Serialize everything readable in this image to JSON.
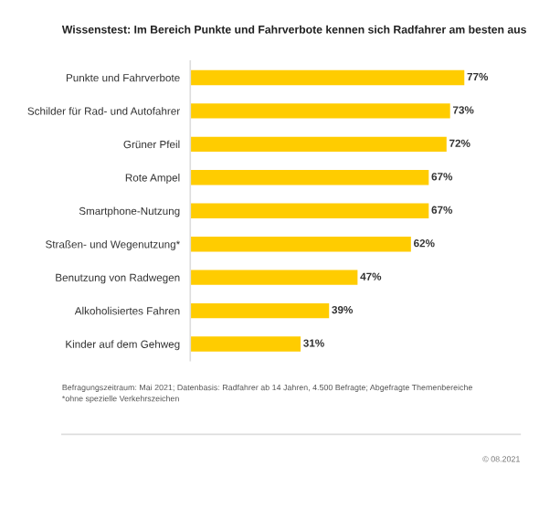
{
  "chart_data": {
    "type": "bar",
    "orientation": "horizontal",
    "title": "Wissenstest: Im Bereich Punkte und Fahrverbote kennen sich Radfahrer am besten aus",
    "categories": [
      "Punkte und Fahrverbote",
      "Schilder für Rad- und Autofahrer",
      "Grüner Pfeil",
      "Rote Ampel",
      "Smartphone-Nutzung",
      "Straßen- und Wegenutzung*",
      "Benutzung von Radwegen",
      "Alkoholisiertes Fahren",
      "Kinder auf dem Gehweg"
    ],
    "values": [
      77,
      73,
      72,
      67,
      67,
      62,
      47,
      39,
      31
    ],
    "color": "#ffcc00",
    "data_labels": true,
    "value_labels": [
      "77%",
      "73%",
      "72%",
      "67%",
      "67%",
      "62%",
      "47%",
      "39%",
      "31%"
    ],
    "grid": false,
    "legend": false,
    "annotations": [
      "Befragungszeitraum: Mai 2021; Datenbasis: Radfahrer ab 14 Jahren, 4.500 Befragte; Abgefragte Themenbereiche\n*ohne spezielle Verkehrszeichen",
      "© 08.2021"
    ]
  }
}
